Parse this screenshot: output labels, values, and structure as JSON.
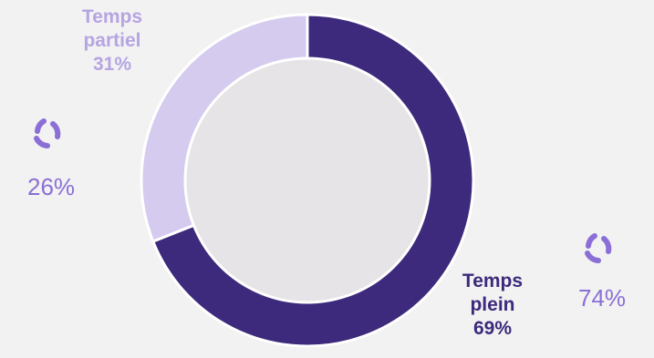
{
  "chart_data": {
    "type": "pie",
    "variant": "donut",
    "slices": [
      {
        "label": "Temps plein",
        "label_lines": [
          "Temps",
          "plein"
        ],
        "value": 69,
        "value_text": "69%",
        "color": "#3d2a7c"
      },
      {
        "label": "Temps partiel",
        "label_lines": [
          "Temps",
          "partiel"
        ],
        "value": 31,
        "value_text": "31%",
        "color": "#d5cbee"
      }
    ],
    "center_color": "#e6e4e6",
    "annotations": [
      {
        "side": "left",
        "value_text": "26%",
        "icon": "refresh-arrows-icon",
        "color": "#8b6fd6"
      },
      {
        "side": "right",
        "value_text": "74%",
        "icon": "refresh-arrows-icon",
        "color": "#8b6fd6"
      }
    ]
  }
}
